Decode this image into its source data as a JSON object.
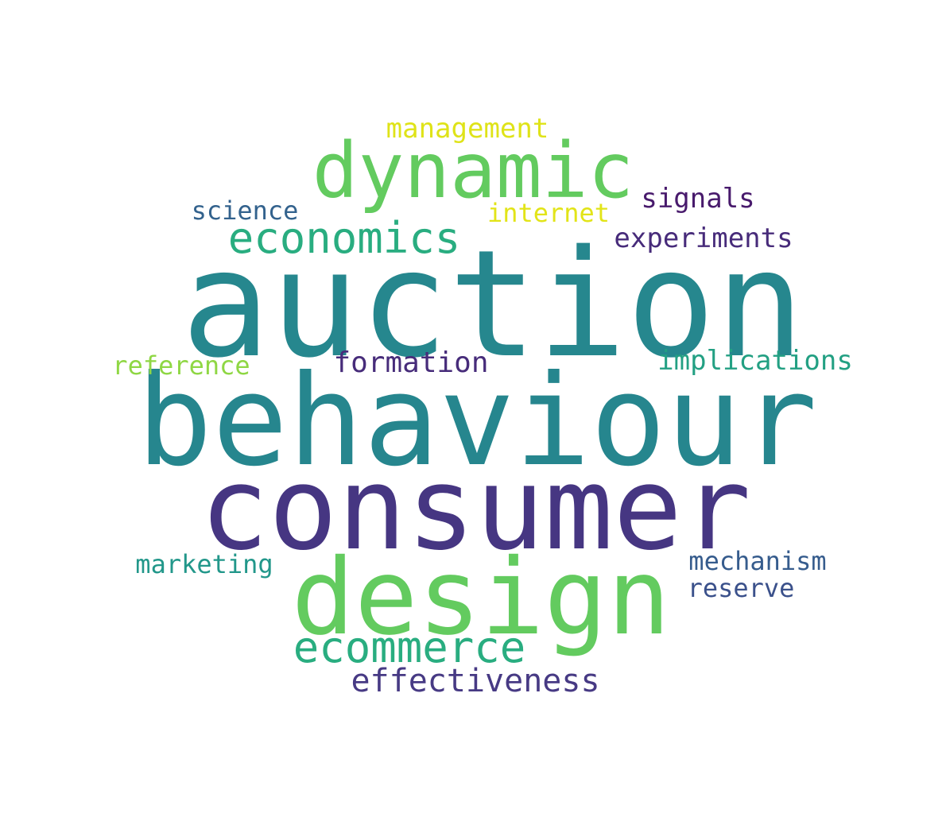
{
  "words": [
    {
      "key": "auction",
      "text": "auction",
      "color": "#26878e"
    },
    {
      "key": "behaviour",
      "text": "behaviour",
      "color": "#26868e"
    },
    {
      "key": "consumer",
      "text": "consumer",
      "color": "#463682"
    },
    {
      "key": "design",
      "text": "design",
      "color": "#63cb5f"
    },
    {
      "key": "dynamic",
      "text": "dynamic",
      "color": "#63cb5f"
    },
    {
      "key": "economics",
      "text": "economics",
      "color": "#29ad80"
    },
    {
      "key": "ecommerce",
      "text": "ecommerce",
      "color": "#29ad80"
    },
    {
      "key": "effectiveness",
      "text": "effectiveness",
      "color": "#473a84"
    },
    {
      "key": "management",
      "text": "management",
      "color": "#dfe318"
    },
    {
      "key": "signals",
      "text": "signals",
      "color": "#481a6c"
    },
    {
      "key": "science",
      "text": "science",
      "color": "#33628d"
    },
    {
      "key": "internet",
      "text": "internet",
      "color": "#e2e418"
    },
    {
      "key": "experiments",
      "text": "experiments",
      "color": "#472b7a"
    },
    {
      "key": "reference",
      "text": "reference",
      "color": "#8fd744"
    },
    {
      "key": "formation",
      "text": "formation",
      "color": "#472c7a"
    },
    {
      "key": "implications",
      "text": "implications",
      "color": "#23a083"
    },
    {
      "key": "marketing",
      "text": "marketing",
      "color": "#22978a"
    },
    {
      "key": "mechanism",
      "text": "mechanism",
      "color": "#365c8d"
    },
    {
      "key": "reserve",
      "text": "reserve",
      "color": "#3b518b"
    }
  ]
}
